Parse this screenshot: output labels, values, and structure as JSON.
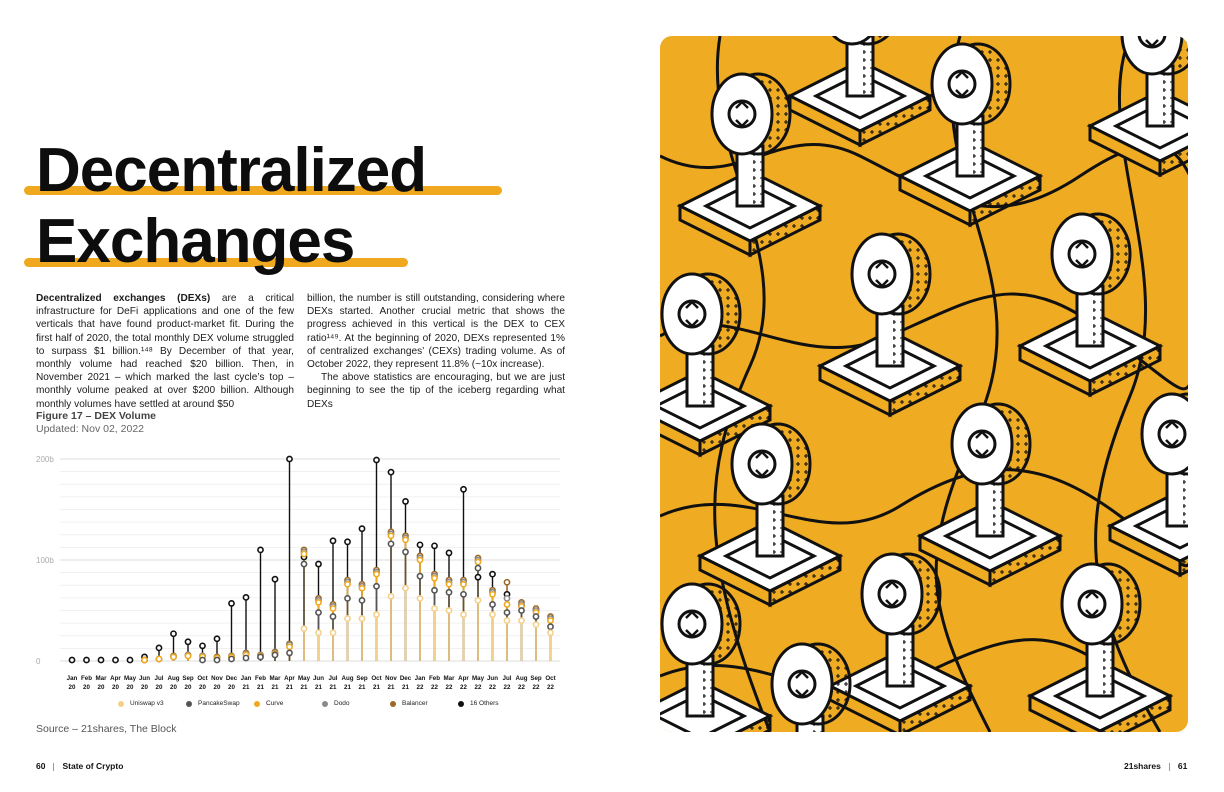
{
  "title": {
    "line1": "Decentralized",
    "line2": "Exchanges"
  },
  "body": {
    "col1_bold": "Decentralized exchanges (DEXs)",
    "col1_text": " are a critical infrastructure for DeFi applications and one of the few verticals that have found product-market fit. During the first half of 2020, the total monthly DEX volume struggled to surpass $1 billion.¹⁴⁸ By December of that year, monthly volume had reached $20 billion. Then, in November 2021 – which marked the last cycle’s top – monthly volume peaked at over $200 billion. Although monthly volumes have settled at around $50",
    "col2_p1": "billion, the number is still outstanding, considering where DEXs started. Another crucial metric that shows the progress achieved in this vertical is the DEX to CEX ratio¹⁴⁹. At the beginning of 2020, DEXs represented 1% of centralized exchanges’ (CEXs) trading volume. As of October 2022, they represent 11.8% (~10x increase).",
    "col2_p2": "The above statistics are encouraging, but we are just beginning to see the tip of the iceberg regarding what DEXs"
  },
  "figure": {
    "title": "Figure 17 – DEX Volume",
    "updated": "Updated: Nov 02, 2022"
  },
  "source": "Source – 21shares, The Block",
  "footer": {
    "left_page": "60",
    "left_label": "State of Crypto",
    "right_brand": "21shares",
    "right_page": "61"
  },
  "chart_data": {
    "type": "line",
    "title": "",
    "xlabel": "",
    "ylabel": "",
    "ylim": [
      0,
      200
    ],
    "y_ticks": [
      "0",
      "100b",
      "200b"
    ],
    "categories_month": [
      "Jan",
      "Feb",
      "Mar",
      "Apr",
      "May",
      "Jun",
      "Jul",
      "Aug",
      "Sep",
      "Oct",
      "Nov",
      "Dec",
      "Jan",
      "Feb",
      "Mar",
      "Apr",
      "May",
      "Jun",
      "Jul",
      "Aug",
      "Sep",
      "Oct",
      "Nov",
      "Dec",
      "Jan",
      "Feb",
      "Mar",
      "Apr",
      "May",
      "Jun",
      "Jul",
      "Aug",
      "Sep",
      "Oct"
    ],
    "categories_year": [
      "20",
      "20",
      "20",
      "20",
      "20",
      "20",
      "20",
      "20",
      "20",
      "20",
      "20",
      "20",
      "21",
      "21",
      "21",
      "21",
      "21",
      "21",
      "21",
      "21",
      "21",
      "21",
      "21",
      "21",
      "22",
      "22",
      "22",
      "22",
      "22",
      "22",
      "22",
      "22",
      "22",
      "22"
    ],
    "series": [
      {
        "name": "Uniswap v3",
        "color": "#f5d08a",
        "values": [
          0,
          0,
          0,
          0,
          0,
          0,
          0,
          0,
          0,
          0,
          0,
          0,
          0,
          0,
          0,
          0,
          32,
          28,
          28,
          42,
          42,
          46,
          64,
          72,
          62,
          52,
          50,
          46,
          60,
          46,
          40,
          40,
          36,
          28
        ]
      },
      {
        "name": "PancakeSwap",
        "color": "#555555",
        "values": [
          0,
          0,
          0,
          0,
          0,
          0,
          0,
          0,
          0,
          1,
          1,
          2,
          3,
          4,
          6,
          8,
          96,
          48,
          44,
          62,
          60,
          74,
          116,
          108,
          84,
          70,
          68,
          66,
          92,
          56,
          48,
          50,
          44,
          34
        ]
      },
      {
        "name": "Curve",
        "color": "#f0a91f",
        "values": [
          0,
          0,
          0,
          0,
          0,
          1,
          2,
          4,
          5,
          4,
          3,
          4,
          6,
          5,
          7,
          14,
          106,
          58,
          52,
          76,
          72,
          86,
          124,
          120,
          100,
          82,
          76,
          76,
          98,
          66,
          56,
          54,
          48,
          40
        ]
      },
      {
        "name": "Dodo",
        "color": "#8a8a8a",
        "values": [
          0,
          0,
          0,
          0,
          0,
          1,
          2,
          4,
          6,
          5,
          3,
          4,
          7,
          6,
          8,
          16,
          108,
          60,
          54,
          78,
          74,
          88,
          126,
          122,
          102,
          84,
          78,
          78,
          100,
          68,
          62,
          56,
          50,
          42
        ]
      },
      {
        "name": "Balancer",
        "color": "#9a6a2a",
        "values": [
          0,
          0,
          0,
          0,
          0,
          1,
          2,
          5,
          6,
          5,
          4,
          5,
          8,
          6,
          9,
          17,
          110,
          62,
          56,
          80,
          76,
          90,
          128,
          124,
          104,
          86,
          80,
          80,
          102,
          70,
          78,
          58,
          52,
          44
        ]
      },
      {
        "name": "16 Others",
        "color": "#111111",
        "values": [
          1,
          1,
          1,
          1,
          1,
          4,
          13,
          27,
          19,
          15,
          22,
          57,
          63,
          110,
          81,
          200,
          103,
          96,
          119,
          118,
          131,
          199,
          187,
          158,
          115,
          114,
          107,
          170,
          83,
          86,
          66,
          55,
          51,
          0
        ]
      }
    ]
  }
}
